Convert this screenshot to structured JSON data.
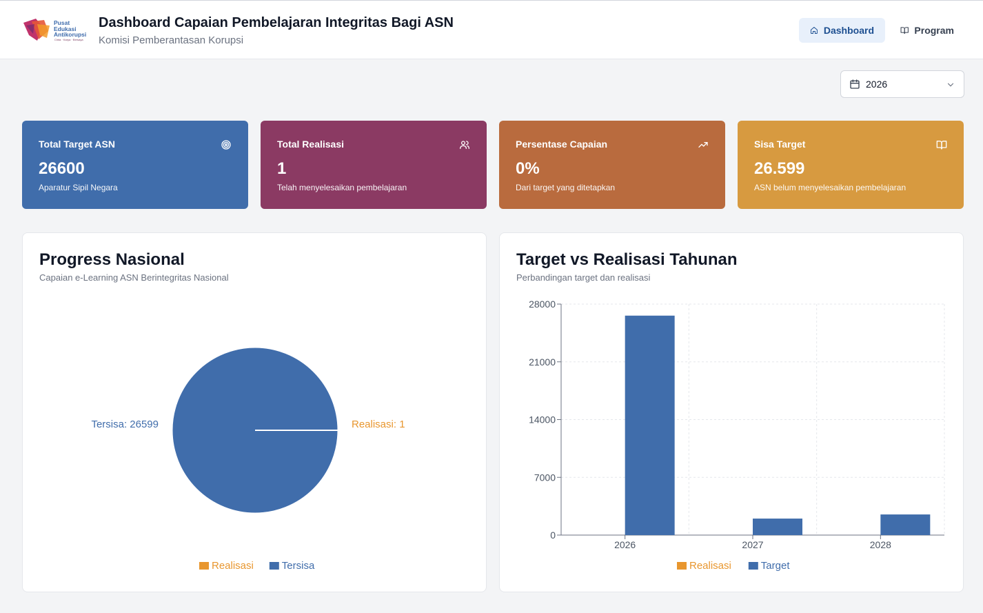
{
  "header": {
    "logo_lines": [
      "Pusat",
      "Edukasi",
      "Antikorupsi"
    ],
    "logo_tagline": "Cinta · Karya · Bersaya",
    "title": "Dashboard Capaian Pembelajaran Integritas Bagi ASN",
    "subtitle": "Komisi Pemberantasan Korupsi",
    "nav": [
      {
        "label": "Dashboard",
        "icon": "home-icon",
        "active": true
      },
      {
        "label": "Program",
        "icon": "book-open-icon",
        "active": false
      }
    ]
  },
  "filter": {
    "year": "2026",
    "icon": "calendar-icon"
  },
  "cards": [
    {
      "label": "Total Target ASN",
      "value": "26600",
      "desc": "Aparatur Sipil Negara",
      "icon": "target-icon",
      "color": "#406dab"
    },
    {
      "label": "Total Realisasi",
      "value": "1",
      "desc": "Telah menyelesaikan pembelajaran",
      "icon": "users-icon",
      "color": "#8b3a63"
    },
    {
      "label": "Persentase Capaian",
      "value": "0%",
      "desc": "Dari target yang ditetapkan",
      "icon": "trending-up-icon",
      "color": "#b96b3e"
    },
    {
      "label": "Sisa Target",
      "value": "26.599",
      "desc": "ASN belum menyelesaikan pembelajaran",
      "icon": "book-icon",
      "color": "#d79a40"
    }
  ],
  "panels": {
    "progress": {
      "title": "Progress Nasional",
      "subtitle": "Capaian e-Learning ASN Berintegritas Nasional"
    },
    "annual": {
      "title": "Target vs Realisasi Tahunan",
      "subtitle": "Perbandingan target dan realisasi"
    }
  },
  "chart_data": [
    {
      "type": "pie",
      "title": "Progress Nasional",
      "slices": [
        {
          "name": "Realisasi",
          "value": 1,
          "label": "Realisasi: 1",
          "color": "#e8962e"
        },
        {
          "name": "Tersisa",
          "value": 26599,
          "label": "Tersisa: 26599",
          "color": "#406dab"
        }
      ],
      "legend": "bottom"
    },
    {
      "type": "bar",
      "title": "Target vs Realisasi Tahunan",
      "categories": [
        "2026",
        "2027",
        "2028"
      ],
      "series": [
        {
          "name": "Realisasi",
          "values": [
            1,
            0,
            0
          ],
          "color": "#e8962e"
        },
        {
          "name": "Target",
          "values": [
            26600,
            2000,
            2500
          ],
          "color": "#406dab"
        }
      ],
      "ylim": [
        0,
        28000
      ],
      "yticks": [
        "0",
        "7000",
        "14000",
        "21000",
        "28000"
      ],
      "grid": true,
      "legend": "bottom"
    }
  ]
}
